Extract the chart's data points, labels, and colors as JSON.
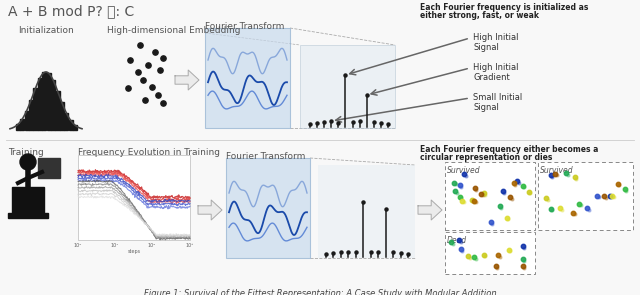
{
  "title": "A + B mod P? 🍚: C",
  "caption": "Figure 1: Survival of the Fittest Representation: A Case Study with Modular Addition",
  "bg_color": "#f5f5f5",
  "top_right_text1": "Each Fourier frequency is initialized as",
  "top_right_text2": "either strong, fast, or weak",
  "bottom_right_text1": "Each Fourier frequency either becomes a",
  "bottom_right_text2": "circular representation or dies",
  "label_init": "Initialization",
  "label_hde": "High-dimensional Embedding",
  "label_ft_top": "Fourier Transform",
  "label_training": "Training",
  "label_freq_evo": "Frequency Evolution in Training",
  "label_ft_bottom": "Fourier Transform",
  "annotation_high_signal": "High Initial\nSignal",
  "annotation_high_grad": "High Initial\nGradient",
  "annotation_small_signal": "Small Initial\nSignal",
  "annotation_survived1": "Survived",
  "annotation_survived2": "Survived",
  "annotation_dead": "Dead",
  "blue_panel_color": "#b8cfe8",
  "font_size_title": 10,
  "font_size_labels": 6.5,
  "font_size_caption": 6,
  "font_size_annotations": 6
}
